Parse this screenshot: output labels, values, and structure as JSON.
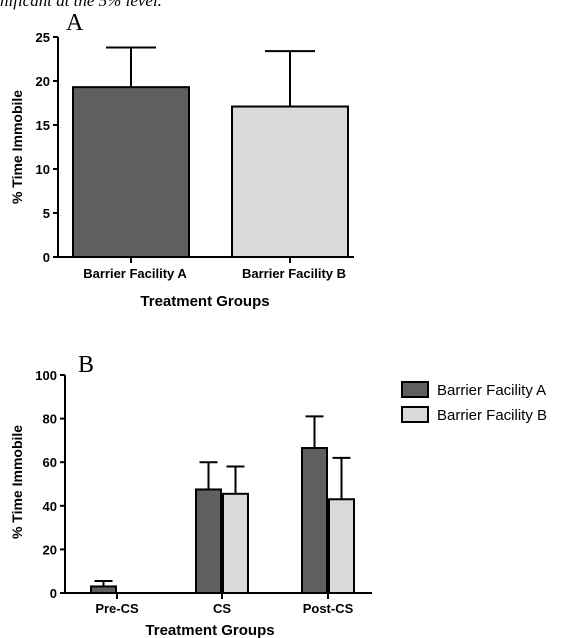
{
  "caption_fragment": "nificant at the 5% level.",
  "chart_data": [
    {
      "panel_label": "A",
      "type": "bar",
      "categories": [
        "Barrier Facility A",
        "Barrier Facility B"
      ],
      "values": [
        19.3,
        17.1
      ],
      "errors": [
        4.5,
        6.3
      ],
      "colors": [
        "#5f5f5f",
        "#d9d9d9"
      ],
      "title": "",
      "xlabel": "Treatment Groups",
      "ylabel": "% Time Immobile",
      "ylim": [
        0,
        25
      ],
      "yticks": [
        "0",
        "5",
        "10",
        "15",
        "20",
        "25"
      ],
      "grid": false,
      "legend": null
    },
    {
      "panel_label": "B",
      "type": "bar",
      "categories": [
        "Pre-CS",
        "CS",
        "Post-CS"
      ],
      "series": [
        {
          "name": "Barrier Facility A",
          "values": [
            3.0,
            47.5,
            66.5
          ],
          "errors": [
            2.5,
            12.5,
            14.5
          ],
          "color": "#5f5f5f"
        },
        {
          "name": "Barrier Facility B",
          "values": [
            0,
            45.5,
            43.0
          ],
          "errors": [
            0,
            12.5,
            19.0
          ],
          "color": "#d9d9d9"
        }
      ],
      "title": "",
      "xlabel": "Treatment Groups",
      "ylabel": "% Time Immobile",
      "ylim": [
        0,
        100
      ],
      "yticks": [
        "0",
        "20",
        "40",
        "60",
        "80",
        "100"
      ],
      "grid": false,
      "legend": "top-right"
    }
  ]
}
